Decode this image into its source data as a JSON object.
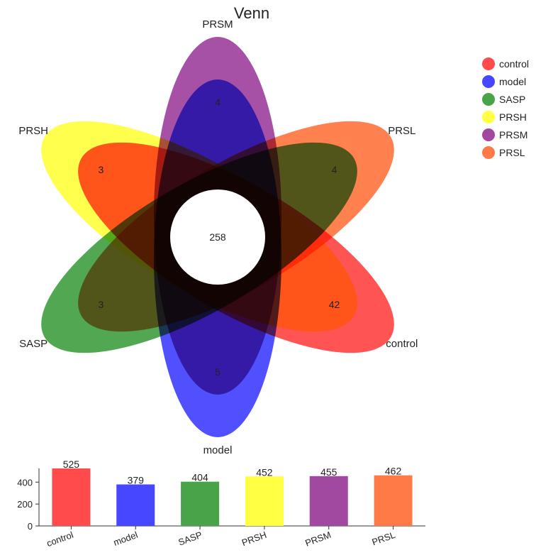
{
  "chart_data": [
    {
      "type": "venn",
      "title": "Venn",
      "sets": [
        {
          "name": "control",
          "color": "#ff4b4b",
          "unique": 42
        },
        {
          "name": "model",
          "color": "#4747ff",
          "unique": 5
        },
        {
          "name": "SASP",
          "color": "#49a349",
          "unique": 3
        },
        {
          "name": "PRSH",
          "color": "#ffff44",
          "unique": 3
        },
        {
          "name": "PRSM",
          "color": "#a148a1",
          "unique": 4
        },
        {
          "name": "PRSL",
          "color": "#ff7a46",
          "unique": 4
        }
      ],
      "center": 258,
      "legend_position": "top-right"
    },
    {
      "type": "bar",
      "categories": [
        "control",
        "model",
        "SASP",
        "PRSH",
        "PRSM",
        "PRSL"
      ],
      "values": [
        525,
        379,
        404,
        452,
        455,
        462
      ],
      "colors": [
        "#ff4b4b",
        "#4747ff",
        "#49a349",
        "#ffff44",
        "#a148a1",
        "#ff7a46"
      ],
      "ylim": [
        0,
        525
      ],
      "yticks": [
        0,
        200,
        400
      ],
      "xlabel": "",
      "ylabel": ""
    }
  ]
}
